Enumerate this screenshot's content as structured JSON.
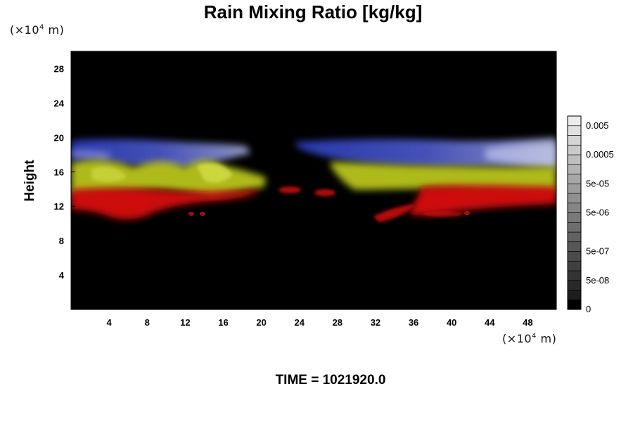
{
  "title": "Rain Mixing Ratio [kg/kg]",
  "time_label": "TIME = 1021920.0",
  "y_unit": {
    "prefix": "(×10",
    "exp": "4",
    "suffix": " m)"
  },
  "x_unit": {
    "prefix": "(×10",
    "exp": "4",
    "suffix": " m)"
  },
  "ylabel": "Height",
  "colors": {
    "background": "#000000",
    "blue": "#2a3dc8",
    "yellow": "#b9c91a",
    "red": "#e01010"
  },
  "chart_data": {
    "type": "heatmap",
    "title": "Rain Mixing Ratio [kg/kg]",
    "xlabel": "",
    "ylabel": "Height",
    "x_ticks": [
      "4",
      "8",
      "12",
      "16",
      "20",
      "24",
      "28",
      "32",
      "36",
      "40",
      "44",
      "48"
    ],
    "y_ticks": [
      "4",
      "8",
      "12",
      "16",
      "20",
      "24",
      "28"
    ],
    "xlim": [
      0,
      51
    ],
    "ylim": [
      0,
      30
    ],
    "colorbar": {
      "labels": [
        "0",
        "5e-08",
        "5e-07",
        "5e-06",
        "5e-05",
        "0.0005",
        "0.005"
      ],
      "levels": 20
    },
    "layers": [
      {
        "name": "blue",
        "y_range": [
          16.5,
          19.5
        ],
        "x_segments": [
          [
            0,
            19
          ],
          [
            24,
            51
          ]
        ]
      },
      {
        "name": "yellow",
        "y_range": [
          13.5,
          17.5
        ],
        "x_segments": [
          [
            0,
            19
          ],
          [
            28,
            51
          ]
        ]
      },
      {
        "name": "red",
        "y_range": [
          10.5,
          14
        ],
        "x_segments": [
          [
            0,
            22
          ],
          [
            31,
            51
          ]
        ]
      }
    ]
  }
}
